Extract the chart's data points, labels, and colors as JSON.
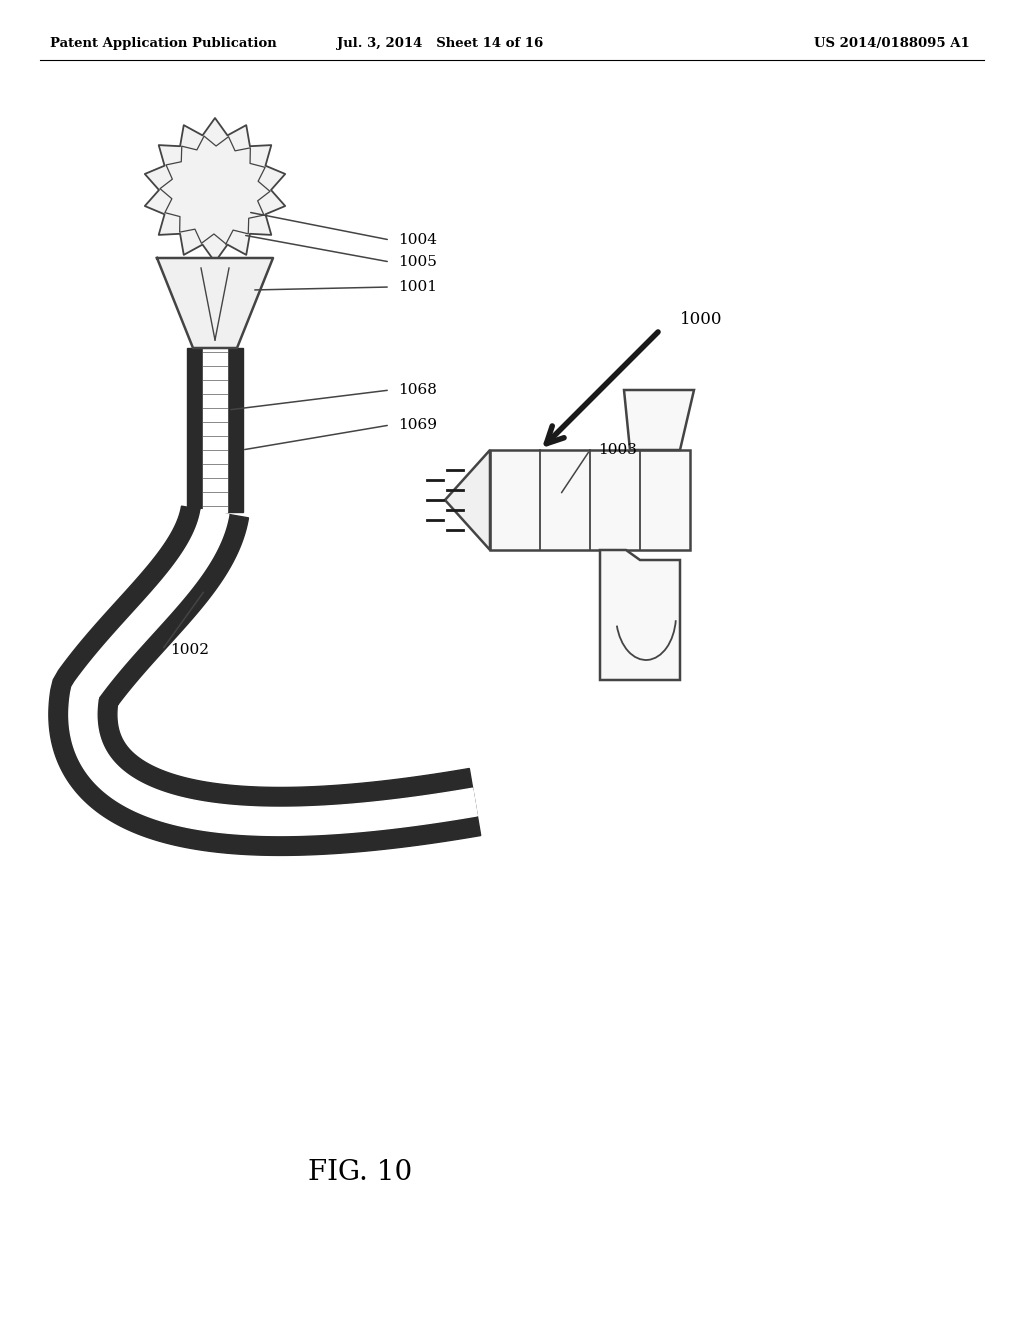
{
  "bg_color": "#ffffff",
  "header_left": "Patent Application Publication",
  "header_mid": "Jul. 3, 2014   Sheet 14 of 16",
  "header_right": "US 2014/0188095 A1",
  "fig_label": "FIG. 10",
  "line_color": "#444444",
  "dark_color": "#1a1a1a",
  "tube_dark": "#2a2a2a",
  "tube_light": "#ffffff"
}
